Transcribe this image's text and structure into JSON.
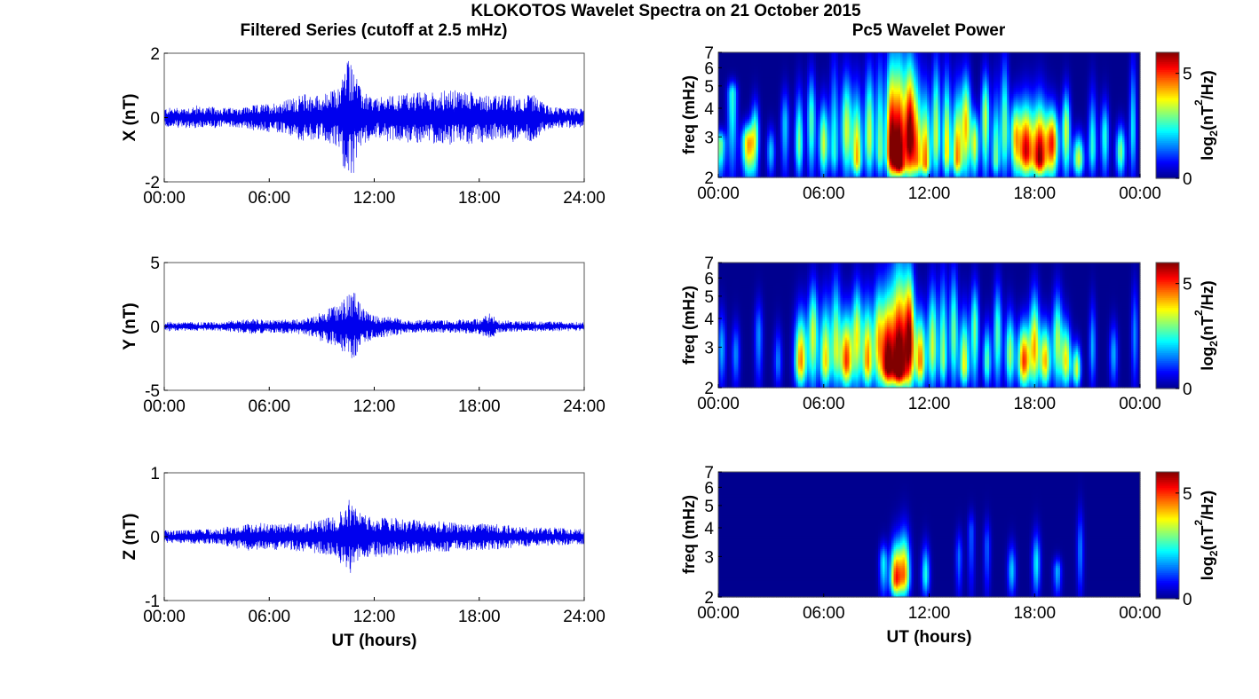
{
  "figure_title": "KLOKOTOS Wavelet Spectra on 21 October 2015",
  "left_column_title": "Filtered Series (cutoff at 2.5 mHz)",
  "right_column_title": "Pc5 Wavelet Power",
  "colors": {
    "trace": "#0000ee",
    "background_low": "#00008b",
    "colormap": [
      "#00008f",
      "#0000ff",
      "#00ffff",
      "#ffff00",
      "#ff0000",
      "#800000"
    ]
  },
  "chart_data": [
    {
      "type": "line",
      "panel": "X",
      "ylabel": "X (nT)",
      "xlabel": "",
      "xticks": [
        "00:00",
        "06:00",
        "12:00",
        "18:00",
        "24:00"
      ],
      "xlim_hours": [
        0,
        24
      ],
      "ylim": [
        -2,
        2
      ],
      "yticks": [
        "2",
        "0",
        "-2"
      ],
      "envelope": {
        "x_hours": [
          0,
          2,
          4,
          6,
          7,
          8,
          9,
          10,
          10.4,
          10.8,
          11.2,
          12,
          13,
          14,
          15,
          16,
          17,
          18,
          19,
          20,
          20.5,
          21,
          22,
          23,
          24
        ],
        "amplitude": [
          0.3,
          0.35,
          0.3,
          0.45,
          0.55,
          0.75,
          0.7,
          0.95,
          1.9,
          1.85,
          0.9,
          0.6,
          0.7,
          0.8,
          0.8,
          0.85,
          0.85,
          0.8,
          0.7,
          0.7,
          0.65,
          0.75,
          0.35,
          0.3,
          0.3
        ]
      }
    },
    {
      "type": "line",
      "panel": "Y",
      "ylabel": "Y (nT)",
      "xlabel": "",
      "xticks": [
        "00:00",
        "06:00",
        "12:00",
        "18:00",
        "24:00"
      ],
      "xlim_hours": [
        0,
        24
      ],
      "ylim": [
        -5,
        5
      ],
      "yticks": [
        "5",
        "0",
        "-5"
      ],
      "envelope": {
        "x_hours": [
          0,
          3,
          5,
          6,
          8,
          9,
          9.8,
          10.3,
          10.8,
          11.3,
          12,
          13,
          14,
          16,
          18,
          18.7,
          19,
          21,
          24
        ],
        "amplitude": [
          0.35,
          0.35,
          0.6,
          0.5,
          0.6,
          1.2,
          1.6,
          2.2,
          2.9,
          1.5,
          0.9,
          0.8,
          0.5,
          0.5,
          0.6,
          1.1,
          0.5,
          0.4,
          0.35
        ]
      }
    },
    {
      "type": "line",
      "panel": "Z",
      "ylabel": "Z (nT)",
      "xlabel": "UT (hours)",
      "xticks": [
        "00:00",
        "06:00",
        "12:00",
        "18:00",
        "24:00"
      ],
      "xlim_hours": [
        0,
        24
      ],
      "ylim": [
        -1,
        1
      ],
      "yticks": [
        "1",
        "0",
        "-1"
      ],
      "envelope": {
        "x_hours": [
          0,
          3,
          5,
          7,
          8,
          9,
          10,
          10.4,
          10.8,
          11.3,
          12,
          13,
          14,
          15,
          17,
          19,
          21,
          24
        ],
        "amplitude": [
          0.1,
          0.12,
          0.22,
          0.2,
          0.25,
          0.28,
          0.35,
          0.6,
          0.55,
          0.35,
          0.3,
          0.3,
          0.28,
          0.25,
          0.22,
          0.2,
          0.15,
          0.12
        ]
      }
    },
    {
      "type": "heatmap",
      "panel": "X-wavelet",
      "ylabel": "freq (mHz)",
      "xlabel": "",
      "xticks": [
        "00:00",
        "06:00",
        "12:00",
        "18:00",
        "00:00"
      ],
      "xlim_hours": [
        0,
        24
      ],
      "ylim_mhz": [
        2,
        7
      ],
      "y_scale": "log",
      "yticks": [
        "7",
        "6",
        "5",
        "4",
        "3",
        "2"
      ],
      "colorbar": {
        "label_main": "log",
        "label_sub": "2",
        "label_rest": "(nT",
        "label_sup": "2",
        "label_end": "/Hz)",
        "ticks": [
          "5",
          "0"
        ],
        "range": [
          0,
          6
        ]
      },
      "blobs": [
        [
          0.1,
          2.8,
          2.0,
          0.4,
          3.0
        ],
        [
          0.8,
          4.6,
          2.8,
          0.35,
          2.5
        ],
        [
          1.7,
          2.8,
          3.5,
          0.45,
          4.2
        ],
        [
          2.1,
          3.2,
          4.5,
          0.3,
          2.5
        ],
        [
          3.0,
          2.6,
          3.4,
          0.3,
          2.0
        ],
        [
          3.8,
          3.4,
          5.0,
          0.3,
          2.0
        ],
        [
          4.6,
          2.8,
          5.0,
          0.3,
          3.0
        ],
        [
          5.3,
          3.5,
          6.0,
          0.3,
          2.8
        ],
        [
          6.0,
          2.8,
          4.5,
          0.35,
          3.5
        ],
        [
          6.6,
          2.6,
          7.0,
          0.3,
          2.5
        ],
        [
          7.3,
          3.2,
          6.0,
          0.4,
          3.5
        ],
        [
          7.9,
          2.4,
          5.0,
          0.35,
          4.2
        ],
        [
          8.6,
          3.0,
          6.5,
          0.35,
          3.5
        ],
        [
          9.2,
          2.6,
          7.0,
          0.3,
          3.0
        ],
        [
          9.8,
          2.6,
          7.0,
          0.35,
          5.0
        ],
        [
          10.3,
          2.3,
          7.0,
          0.5,
          6.5
        ],
        [
          10.9,
          3.0,
          7.0,
          0.35,
          5.5
        ],
        [
          11.3,
          2.4,
          6.0,
          0.35,
          4.0
        ],
        [
          11.8,
          2.3,
          5.0,
          0.35,
          4.5
        ],
        [
          12.4,
          3.0,
          7.0,
          0.3,
          3.5
        ],
        [
          13.0,
          2.6,
          6.0,
          0.3,
          4.0
        ],
        [
          13.6,
          2.4,
          5.0,
          0.35,
          4.5
        ],
        [
          14.1,
          3.4,
          6.0,
          0.35,
          4.0
        ],
        [
          14.6,
          2.8,
          4.0,
          0.3,
          3.5
        ],
        [
          15.2,
          3.6,
          6.0,
          0.3,
          3.5
        ],
        [
          15.8,
          2.4,
          5.0,
          0.3,
          3.0
        ],
        [
          16.3,
          3.2,
          7.0,
          0.3,
          3.0
        ],
        [
          16.9,
          3.0,
          4.5,
          0.35,
          3.5
        ],
        [
          17.5,
          2.6,
          4.5,
          0.55,
          5.5
        ],
        [
          18.3,
          2.4,
          4.5,
          0.5,
          5.8
        ],
        [
          19.0,
          2.8,
          4.2,
          0.45,
          5.0
        ],
        [
          19.8,
          3.2,
          5.0,
          0.3,
          3.5
        ],
        [
          20.5,
          2.4,
          3.2,
          0.4,
          3.5
        ],
        [
          21.3,
          2.7,
          5.0,
          0.3,
          2.5
        ],
        [
          22.0,
          3.0,
          4.5,
          0.3,
          2.5
        ],
        [
          22.9,
          2.6,
          3.5,
          0.35,
          3.0
        ],
        [
          23.6,
          3.2,
          7.0,
          0.25,
          2.2
        ]
      ]
    },
    {
      "type": "heatmap",
      "panel": "Y-wavelet",
      "ylabel": "freq (mHz)",
      "xlabel": "",
      "xticks": [
        "00:00",
        "06:00",
        "12:00",
        "18:00",
        "00:00"
      ],
      "xlim_hours": [
        0,
        24
      ],
      "ylim_mhz": [
        2,
        7
      ],
      "y_scale": "log",
      "yticks": [
        "7",
        "6",
        "5",
        "4",
        "3",
        "2"
      ],
      "colorbar": {
        "label_main": "log",
        "label_sub": "2",
        "label_rest": "(nT",
        "label_sup": "2",
        "label_end": "/Hz)",
        "ticks": [
          "5",
          "0"
        ],
        "range": [
          0,
          6
        ]
      },
      "blobs": [
        [
          0.2,
          3.0,
          4.5,
          0.3,
          1.8
        ],
        [
          1.0,
          2.8,
          4.0,
          0.3,
          1.6
        ],
        [
          2.3,
          3.4,
          5.0,
          0.3,
          1.6
        ],
        [
          3.4,
          2.6,
          3.8,
          0.3,
          1.5
        ],
        [
          4.7,
          2.6,
          4.5,
          0.45,
          4.5
        ],
        [
          5.4,
          3.4,
          6.0,
          0.35,
          3.5
        ],
        [
          6.1,
          2.6,
          5.0,
          0.4,
          4.0
        ],
        [
          6.7,
          3.0,
          6.5,
          0.35,
          3.2
        ],
        [
          7.3,
          2.6,
          4.5,
          0.45,
          5.0
        ],
        [
          7.9,
          3.4,
          6.0,
          0.35,
          3.5
        ],
        [
          8.5,
          2.6,
          5.0,
          0.4,
          4.5
        ],
        [
          9.1,
          3.2,
          6.0,
          0.35,
          3.5
        ],
        [
          9.6,
          2.5,
          5.5,
          0.45,
          5.5
        ],
        [
          10.3,
          2.4,
          7.0,
          0.6,
          6.8
        ],
        [
          10.9,
          3.2,
          7.0,
          0.35,
          5.0
        ],
        [
          11.5,
          2.6,
          4.5,
          0.4,
          4.5
        ],
        [
          12.2,
          3.0,
          6.0,
          0.35,
          3.5
        ],
        [
          12.8,
          2.7,
          6.5,
          0.3,
          3.2
        ],
        [
          13.4,
          3.4,
          7.0,
          0.3,
          3.0
        ],
        [
          14.0,
          2.5,
          4.5,
          0.35,
          3.8
        ],
        [
          14.6,
          3.6,
          6.0,
          0.3,
          3.0
        ],
        [
          15.3,
          2.6,
          4.0,
          0.3,
          2.8
        ],
        [
          15.9,
          3.4,
          6.0,
          0.3,
          2.8
        ],
        [
          16.6,
          2.8,
          4.5,
          0.35,
          3.2
        ],
        [
          17.4,
          2.6,
          4.0,
          0.45,
          5.0
        ],
        [
          18.0,
          3.0,
          5.5,
          0.35,
          4.0
        ],
        [
          18.6,
          2.6,
          4.0,
          0.4,
          4.2
        ],
        [
          19.3,
          3.2,
          5.5,
          0.35,
          3.2
        ],
        [
          19.8,
          2.6,
          4.0,
          0.35,
          3.8
        ],
        [
          20.4,
          2.4,
          3.2,
          0.3,
          3.5
        ],
        [
          21.3,
          3.0,
          5.0,
          0.25,
          1.8
        ],
        [
          22.5,
          2.8,
          4.0,
          0.3,
          1.8
        ],
        [
          23.7,
          3.4,
          6.0,
          0.25,
          1.6
        ]
      ]
    },
    {
      "type": "heatmap",
      "panel": "Z-wavelet",
      "ylabel": "freq (mHz)",
      "xlabel": "UT (hours)",
      "xticks": [
        "00:00",
        "06:00",
        "12:00",
        "18:00",
        "00:00"
      ],
      "xlim_hours": [
        0,
        24
      ],
      "ylim_mhz": [
        2,
        7
      ],
      "y_scale": "log",
      "yticks": [
        "7",
        "6",
        "5",
        "4",
        "3",
        "2"
      ],
      "colorbar": {
        "label_main": "log",
        "label_sub": "2",
        "label_rest": "(nT",
        "label_sup": "2",
        "label_end": "/Hz)",
        "ticks": [
          "5",
          "0"
        ],
        "range": [
          0,
          6
        ]
      },
      "blobs": [
        [
          9.4,
          2.8,
          3.5,
          0.3,
          2.2
        ],
        [
          10.1,
          2.4,
          3.6,
          0.4,
          4.8
        ],
        [
          10.6,
          2.5,
          4.0,
          0.4,
          4.2
        ],
        [
          11.8,
          2.5,
          3.5,
          0.3,
          2.4
        ],
        [
          13.7,
          3.0,
          4.0,
          0.25,
          1.4
        ],
        [
          14.4,
          3.8,
          4.8,
          0.25,
          1.3
        ],
        [
          15.3,
          3.3,
          4.5,
          0.25,
          1.3
        ],
        [
          16.7,
          2.6,
          3.5,
          0.3,
          2.0
        ],
        [
          18.1,
          2.8,
          4.0,
          0.3,
          2.2
        ],
        [
          19.3,
          2.6,
          3.0,
          0.3,
          1.8
        ],
        [
          20.6,
          3.2,
          5.0,
          0.25,
          1.5
        ]
      ]
    }
  ]
}
